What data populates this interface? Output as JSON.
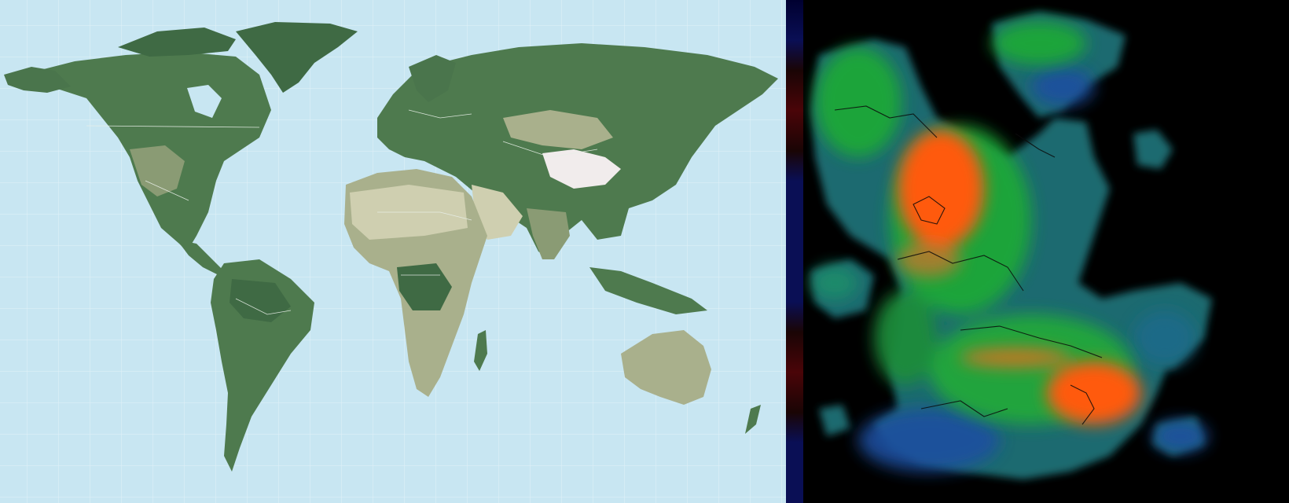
{
  "colors": {
    "ocean": "#c8e6f2",
    "graticule": "#e2f1f8",
    "land_lowland": "#4e7a4e",
    "land_forest": "#3f6a44",
    "land_dry": "#a9b08c",
    "land_desert": "#cfcfb0",
    "land_ice": "#f1ecec",
    "border": "#e8efe8",
    "fantasy_background": "#000000",
    "fantasy_low": "#1c4fa0",
    "fantasy_mid": "#1fa838",
    "fantasy_high": "#ff5a10",
    "fantasy_border": "#0a0a0a",
    "strip_blue": "#0a0f55",
    "strip_red": "#4a0508"
  },
  "panels": {
    "left": {
      "icon": "world-map-icon"
    },
    "right": {
      "icon": "fantasy-heightmap-icon"
    }
  }
}
